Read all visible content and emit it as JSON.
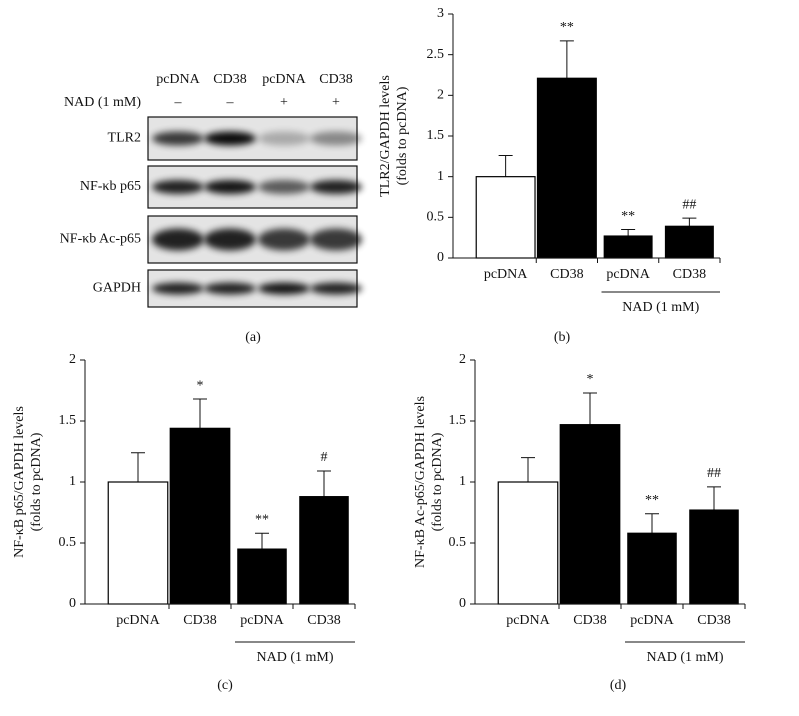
{
  "blot": {
    "columns": [
      "pcDNA",
      "CD38",
      "pcDNA",
      "CD38"
    ],
    "treatment_label": "NAD (1 mM)",
    "treatment": [
      "–",
      "–",
      "+",
      "+"
    ],
    "rows": [
      "TLR2",
      "NF-κb p65",
      "NF-κb Ac-p65",
      "GAPDH"
    ],
    "panel_label": "(a)"
  },
  "chart_data": [
    {
      "type": "bar",
      "panel_label": "(b)",
      "ylabel": [
        "TLR2/GAPDH levels",
        "(folds to pcDNA)"
      ],
      "categories": [
        "pcDNA",
        "CD38",
        "pcDNA",
        "CD38"
      ],
      "group_label": "NAD (1 mM)",
      "values": [
        1.0,
        2.21,
        0.27,
        0.39
      ],
      "errors": [
        0.26,
        0.46,
        0.08,
        0.1
      ],
      "annotations": [
        null,
        "**",
        "**",
        "##"
      ],
      "bar_colors": [
        "#ffffff",
        "#000000",
        "#000000",
        "#000000"
      ],
      "ylim": [
        0,
        3
      ],
      "yticks": [
        0,
        0.5,
        1,
        1.5,
        2,
        2.5,
        3
      ]
    },
    {
      "type": "bar",
      "panel_label": "(c)",
      "ylabel": [
        "NF-κB p65/GAPDH levels",
        "(folds to pcDNA)"
      ],
      "categories": [
        "pcDNA",
        "CD38",
        "pcDNA",
        "CD38"
      ],
      "group_label": "NAD (1 mM)",
      "values": [
        1.0,
        1.44,
        0.45,
        0.88
      ],
      "errors": [
        0.24,
        0.24,
        0.13,
        0.21
      ],
      "annotations": [
        null,
        "*",
        "**",
        "#"
      ],
      "bar_colors": [
        "#ffffff",
        "#000000",
        "#000000",
        "#000000"
      ],
      "ylim": [
        0,
        2
      ],
      "yticks": [
        0,
        0.5,
        1,
        1.5,
        2
      ]
    },
    {
      "type": "bar",
      "panel_label": "(d)",
      "ylabel": [
        "NF-κB Ac-p65/GAPDH levels",
        "(folds to pcDNA)"
      ],
      "categories": [
        "pcDNA",
        "CD38",
        "pcDNA",
        "CD38"
      ],
      "group_label": "NAD (1 mM)",
      "values": [
        1.0,
        1.47,
        0.58,
        0.77
      ],
      "errors": [
        0.2,
        0.26,
        0.16,
        0.19
      ],
      "annotations": [
        null,
        "*",
        "**",
        "##"
      ],
      "bar_colors": [
        "#ffffff",
        "#000000",
        "#000000",
        "#000000"
      ],
      "ylim": [
        0,
        2
      ],
      "yticks": [
        0,
        0.5,
        1,
        1.5,
        2
      ]
    }
  ]
}
